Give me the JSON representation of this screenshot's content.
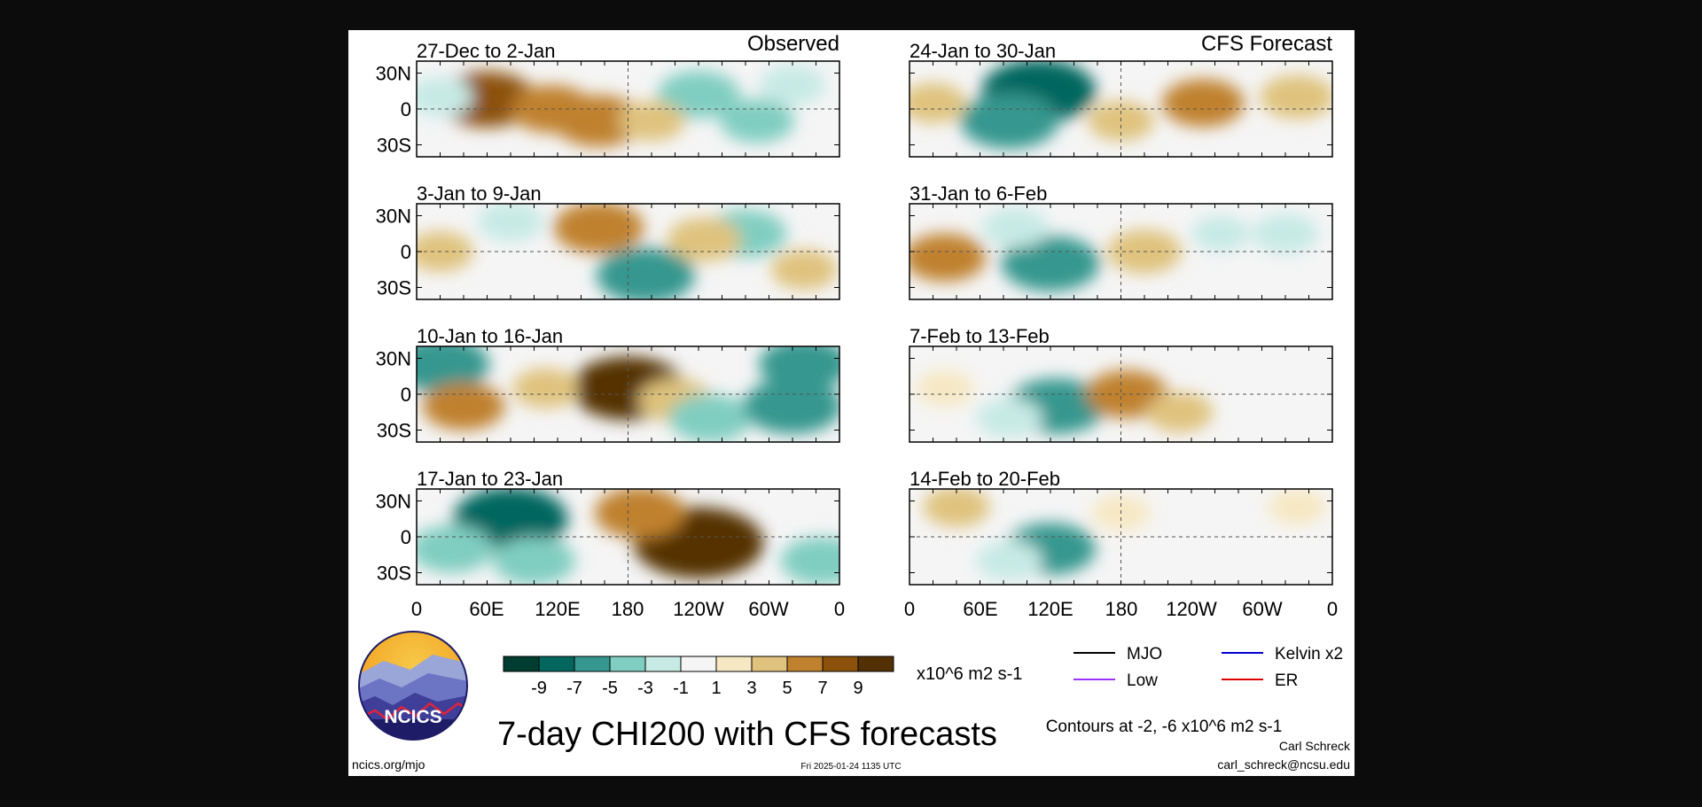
{
  "figure_title": "7-day CHI200 with CFS forecasts",
  "column_labels": {
    "left": "Observed",
    "right": "CFS Forecast"
  },
  "axis": {
    "y_ticks": [
      "30N",
      "0",
      "30S"
    ],
    "x_ticks": [
      "0",
      "60E",
      "120E",
      "180",
      "120W",
      "60W",
      "0"
    ]
  },
  "colorbar": {
    "unit": "x10^6 m2 s-1",
    "labels": [
      "-9",
      "-7",
      "-5",
      "-3",
      "-1",
      "1",
      "3",
      "5",
      "7",
      "9"
    ],
    "colors": [
      "#003c30",
      "#01665e",
      "#35978f",
      "#80cdc1",
      "#c7eae5",
      "#f5f5f5",
      "#f6e8c3",
      "#dfc27d",
      "#bf812d",
      "#8c510a",
      "#543005"
    ]
  },
  "legend": {
    "items": [
      {
        "label": "MJO",
        "color": "#000000"
      },
      {
        "label": "Kelvin x2",
        "color": "#0000cc"
      },
      {
        "label": "Low",
        "color": "#9933ff"
      },
      {
        "label": "ER",
        "color": "#dd0000"
      }
    ]
  },
  "contours_note": "Contours at -2, -6 x10^6 m2 s-1",
  "logo_text": "NCICS",
  "footer": {
    "website": "ncics.org/mjo",
    "timestamp": "Fri 2025-01-24 1135 UTC",
    "author": "Carl Schreck",
    "email": "carl_schreck@ncsu.edu"
  },
  "chart_data": {
    "type": "heatmap",
    "variable": "CHI200",
    "xlim": [
      0,
      360
    ],
    "ylim": [
      -40,
      40
    ],
    "panels": [
      {
        "period": "27-Dec to 2-Jan",
        "column": "Observed",
        "anomalies": [
          {
            "lon": 60,
            "lat": 8,
            "val": 7
          },
          {
            "lon": 115,
            "lat": 0,
            "val": 5
          },
          {
            "lon": 155,
            "lat": -10,
            "val": 6
          },
          {
            "lon": 20,
            "lat": 10,
            "val": -3
          },
          {
            "lon": 240,
            "lat": 12,
            "val": -5
          },
          {
            "lon": 290,
            "lat": -10,
            "val": -4
          },
          {
            "lon": 320,
            "lat": 20,
            "val": -3
          },
          {
            "lon": 200,
            "lat": -10,
            "val": 3
          }
        ]
      },
      {
        "period": "3-Jan to 9-Jan",
        "column": "Observed",
        "anomalies": [
          {
            "lon": 80,
            "lat": 25,
            "val": -3
          },
          {
            "lon": 155,
            "lat": 20,
            "val": 6
          },
          {
            "lon": 195,
            "lat": -20,
            "val": -7
          },
          {
            "lon": 280,
            "lat": 15,
            "val": -5
          },
          {
            "lon": 20,
            "lat": 0,
            "val": 3
          },
          {
            "lon": 245,
            "lat": 10,
            "val": 4
          },
          {
            "lon": 330,
            "lat": -15,
            "val": 3
          }
        ]
      },
      {
        "period": "10-Jan to 16-Jan",
        "column": "Observed",
        "anomalies": [
          {
            "lon": 20,
            "lat": 25,
            "val": -7
          },
          {
            "lon": 40,
            "lat": -10,
            "val": 5
          },
          {
            "lon": 180,
            "lat": 5,
            "val": 9
          },
          {
            "lon": 220,
            "lat": -5,
            "val": 4
          },
          {
            "lon": 250,
            "lat": -20,
            "val": -5
          },
          {
            "lon": 320,
            "lat": -10,
            "val": -7
          },
          {
            "lon": 330,
            "lat": 25,
            "val": -6
          },
          {
            "lon": 110,
            "lat": 5,
            "val": 3
          }
        ]
      },
      {
        "period": "17-Jan to 23-Jan",
        "column": "Observed",
        "anomalies": [
          {
            "lon": 80,
            "lat": 15,
            "val": -9
          },
          {
            "lon": 30,
            "lat": -10,
            "val": -5
          },
          {
            "lon": 100,
            "lat": -20,
            "val": -5
          },
          {
            "lon": 240,
            "lat": -5,
            "val": 11
          },
          {
            "lon": 190,
            "lat": 20,
            "val": 6
          },
          {
            "lon": 345,
            "lat": -20,
            "val": -5
          }
        ]
      },
      {
        "period": "24-Jan to 30-Jan",
        "column": "CFS Forecast",
        "anomalies": [
          {
            "lon": 110,
            "lat": 15,
            "val": -9
          },
          {
            "lon": 85,
            "lat": -10,
            "val": -7
          },
          {
            "lon": 20,
            "lat": 5,
            "val": 3
          },
          {
            "lon": 250,
            "lat": 5,
            "val": 5
          },
          {
            "lon": 330,
            "lat": 10,
            "val": 4
          },
          {
            "lon": 180,
            "lat": -10,
            "val": 3
          }
        ]
      },
      {
        "period": "31-Jan to 6-Feb",
        "column": "CFS Forecast",
        "anomalies": [
          {
            "lon": 120,
            "lat": -10,
            "val": -7
          },
          {
            "lon": 30,
            "lat": -5,
            "val": 5
          },
          {
            "lon": 90,
            "lat": 20,
            "val": -3
          },
          {
            "lon": 200,
            "lat": 0,
            "val": 4
          },
          {
            "lon": 265,
            "lat": 15,
            "val": -2
          },
          {
            "lon": 320,
            "lat": 15,
            "val": -3
          }
        ]
      },
      {
        "period": "7-Feb to 13-Feb",
        "column": "CFS Forecast",
        "anomalies": [
          {
            "lon": 125,
            "lat": -10,
            "val": -7
          },
          {
            "lon": 185,
            "lat": 0,
            "val": 5
          },
          {
            "lon": 30,
            "lat": 5,
            "val": 2
          },
          {
            "lon": 85,
            "lat": -20,
            "val": -3
          },
          {
            "lon": 230,
            "lat": -15,
            "val": 3
          }
        ]
      },
      {
        "period": "14-Feb to 20-Feb",
        "column": "CFS Forecast",
        "anomalies": [
          {
            "lon": 120,
            "lat": -10,
            "val": -6
          },
          {
            "lon": 40,
            "lat": 25,
            "val": 3
          },
          {
            "lon": 85,
            "lat": -20,
            "val": -3
          },
          {
            "lon": 180,
            "lat": 20,
            "val": 2
          },
          {
            "lon": 330,
            "lat": 25,
            "val": 2
          }
        ]
      }
    ]
  }
}
